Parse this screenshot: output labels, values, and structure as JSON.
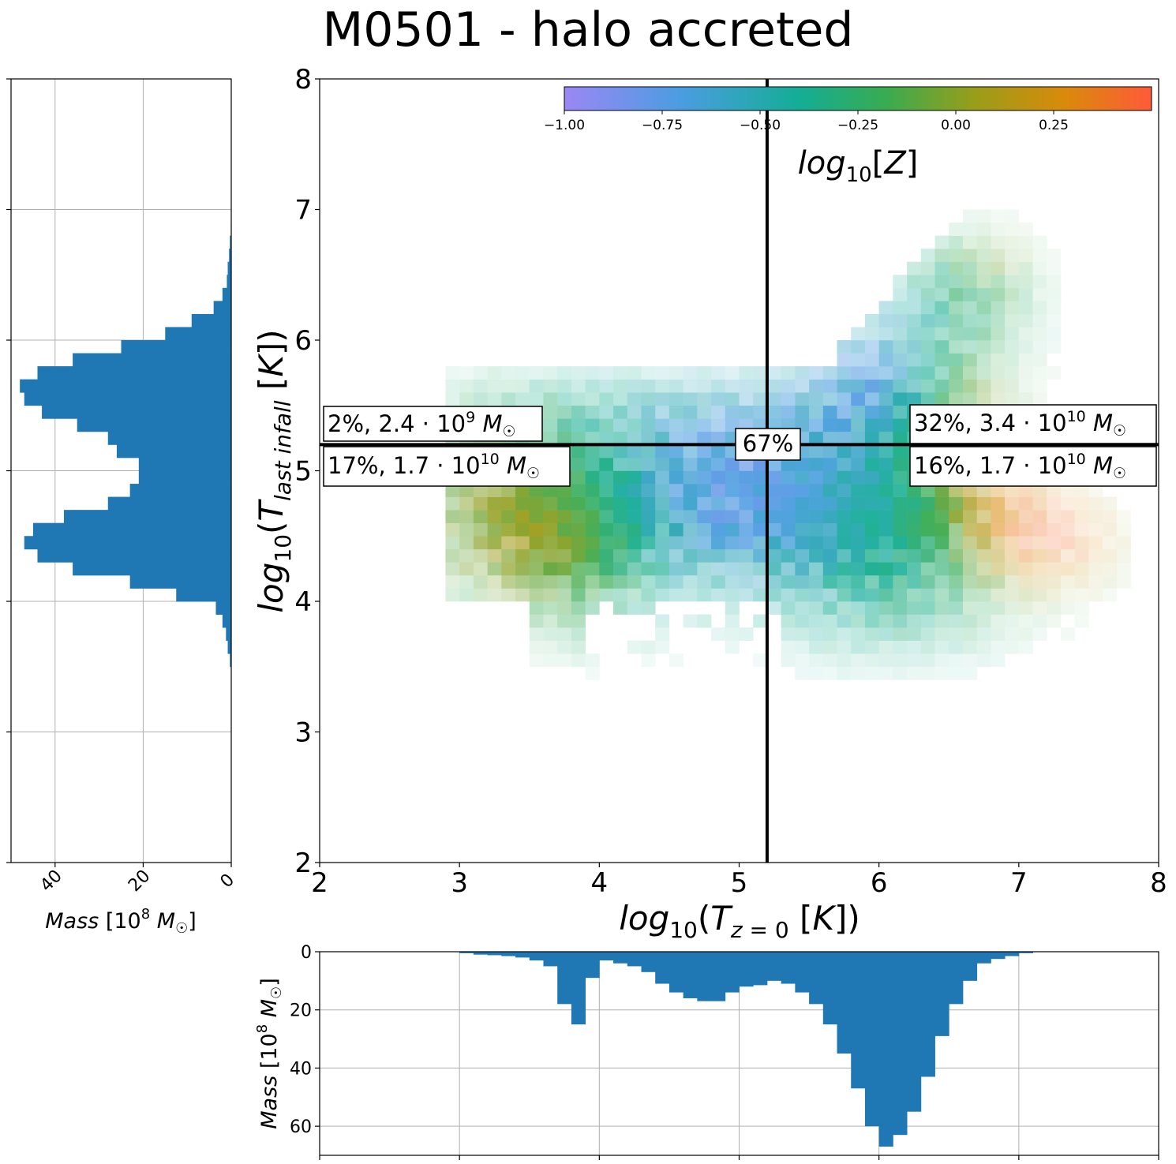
{
  "chart_data": {
    "title": "M0501 - halo accreted",
    "type": "heatmap",
    "main": {
      "type": "heatmap",
      "x_label": "log10(Tz=0 [K])",
      "y_label": "log10(Tlast infall [K])",
      "xlim": [
        2,
        8
      ],
      "ylim": [
        2,
        8
      ],
      "x_ticks": [
        "2",
        "3",
        "4",
        "5",
        "6",
        "7",
        "8"
      ],
      "y_ticks": [
        "2",
        "3",
        "4",
        "5",
        "6",
        "7",
        "8"
      ],
      "divider": {
        "x": 5.2,
        "y": 5.2
      },
      "quadrant_labels": {
        "top_left": "2%,  2.4·10⁹ M☉",
        "bottom_left": "17%,  1.7·10¹⁰ M☉",
        "top_right": "32%,  3.4·10¹⁰ M☉",
        "bottom_right": "16%,  1.7·10¹⁰ M☉",
        "center": "67%"
      },
      "colorbar": {
        "label": "log10[Z]",
        "range": [
          -1.0,
          0.5
        ],
        "ticks": [
          "−1.00",
          "−0.75",
          "−0.50",
          "−0.25",
          "0.00",
          "0.25"
        ],
        "colors": [
          "#9b87f5",
          "#4a9de0",
          "#14ad96",
          "#3aab50",
          "#9a9d1a",
          "#d98a0a",
          "#ff5a3a"
        ]
      },
      "grid": false
    },
    "left_hist": {
      "type": "bar",
      "orientation": "horizontal",
      "x_label": "Mass [10⁸ M☉]",
      "x_ticks": [
        "40",
        "20",
        "0"
      ],
      "xlim": [
        50,
        0
      ],
      "grid": true,
      "bar_color": "#1f77b4",
      "bins_y": [
        3.5,
        3.6,
        3.7,
        3.8,
        3.9,
        4.0,
        4.1,
        4.2,
        4.3,
        4.4,
        4.5,
        4.6,
        4.7,
        4.8,
        4.9,
        5.0,
        5.1,
        5.2,
        5.3,
        5.4,
        5.5,
        5.6,
        5.7,
        5.8,
        5.9,
        6.0,
        6.1,
        6.2,
        6.3,
        6.4,
        6.5,
        6.6,
        6.7,
        6.8
      ],
      "values": [
        0.3,
        0.8,
        1.2,
        2.0,
        3.5,
        12.5,
        23,
        36,
        44,
        47,
        45,
        38,
        28,
        23,
        21,
        21,
        26,
        28,
        35,
        43,
        47,
        48,
        44,
        36,
        25,
        15,
        9,
        4,
        2,
        1,
        0.8,
        0.5,
        0.3,
        0.1
      ]
    },
    "bottom_hist": {
      "type": "bar",
      "y_label": "Mass [10⁸ M☉]",
      "y_ticks": [
        "0",
        "20",
        "40",
        "60"
      ],
      "ylim": [
        0,
        70
      ],
      "y_inverted": true,
      "grid": true,
      "bar_color": "#1f77b4",
      "bins_x": [
        3.0,
        3.1,
        3.2,
        3.3,
        3.4,
        3.5,
        3.6,
        3.7,
        3.8,
        3.9,
        4.0,
        4.1,
        4.2,
        4.3,
        4.4,
        4.5,
        4.6,
        4.7,
        4.8,
        4.9,
        5.0,
        5.1,
        5.2,
        5.3,
        5.4,
        5.5,
        5.6,
        5.7,
        5.8,
        5.9,
        6.0,
        6.1,
        6.2,
        6.3,
        6.4,
        6.5,
        6.6,
        6.7,
        6.8,
        6.9,
        7.0
      ],
      "values": [
        0.5,
        1.0,
        1.2,
        1.5,
        2.0,
        3.0,
        5.0,
        18,
        25,
        9,
        3,
        4,
        5,
        7,
        11,
        14,
        16,
        17,
        17,
        14,
        12,
        11.5,
        10,
        11,
        14,
        18,
        25,
        35,
        47,
        60,
        67,
        63,
        55,
        43,
        29,
        18,
        10,
        4,
        2.5,
        1.5,
        0.5
      ]
    }
  }
}
